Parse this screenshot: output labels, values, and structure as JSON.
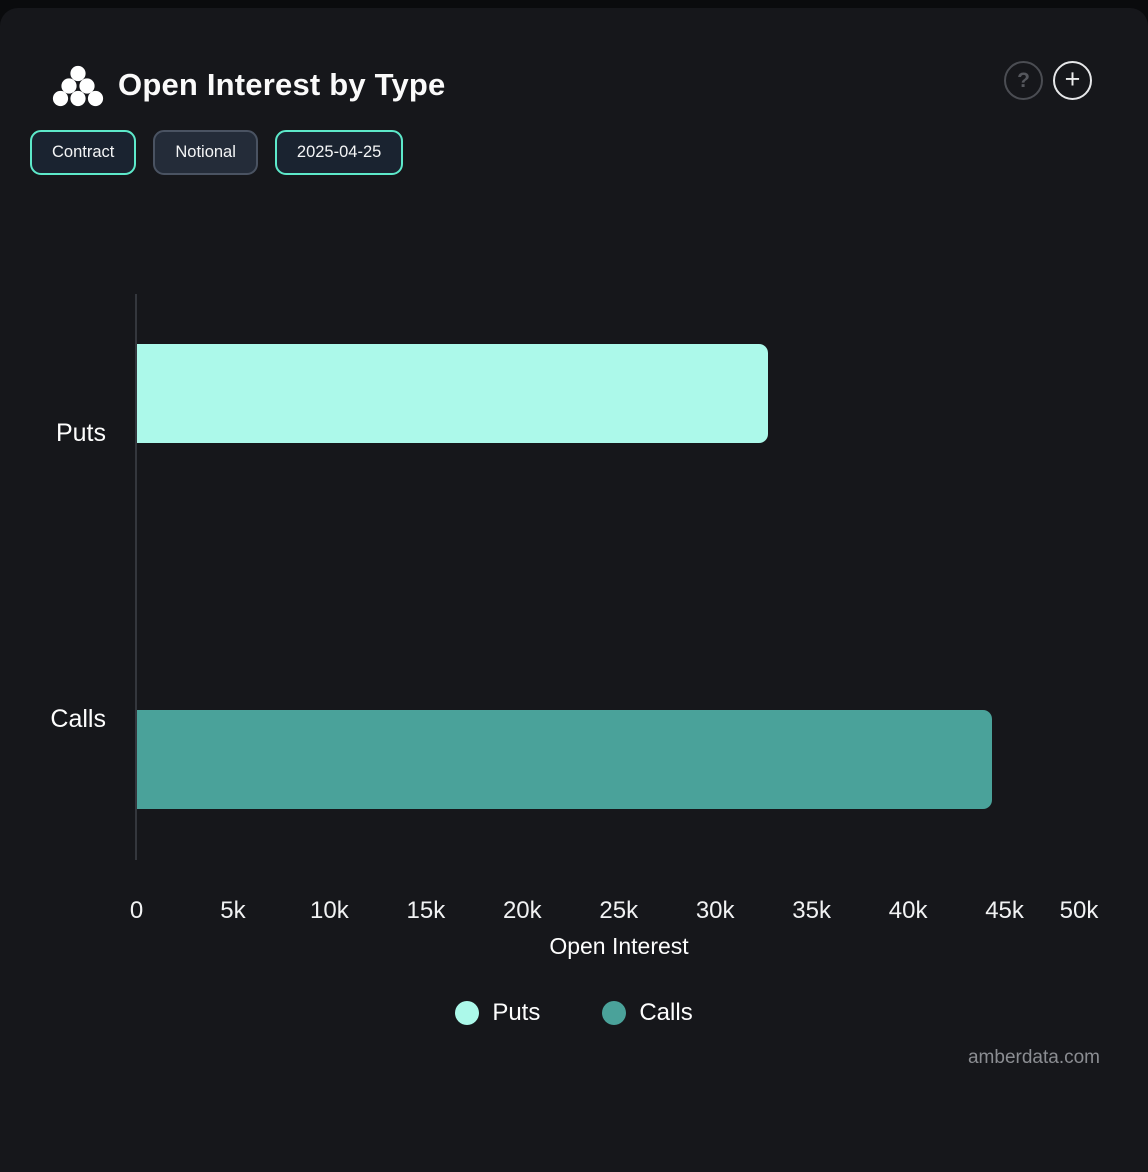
{
  "header": {
    "title": "Open Interest by Type",
    "icons": {
      "logo": "amberdata-logo",
      "help_glyph": "?",
      "add_glyph": "+"
    }
  },
  "toolbar": {
    "buttons": [
      {
        "label": "Contract",
        "active": true
      },
      {
        "label": "Notional",
        "active": false
      },
      {
        "label": "2025-04-25",
        "active": true
      }
    ]
  },
  "chart_data": {
    "type": "bar",
    "orientation": "horizontal",
    "title": "Open Interest by Type",
    "categories": [
      "Puts",
      "Calls"
    ],
    "series": [
      {
        "name": "Puts",
        "color": "#ACF9EA",
        "values": [
          32700,
          0
        ]
      },
      {
        "name": "Calls",
        "color": "#4AA29A",
        "values": [
          0,
          44300
        ]
      }
    ],
    "xlabel": "Open Interest",
    "ylabel": "",
    "xlim": [
      0,
      50000
    ],
    "x_ticks": [
      "0",
      "5k",
      "10k",
      "15k",
      "20k",
      "25k",
      "30k",
      "35k",
      "40k",
      "45k",
      "50k"
    ],
    "grid": false,
    "legend_position": "bottom"
  },
  "colors": {
    "panel_bg": "#16171b",
    "outer_bg": "#0a0b0d",
    "accent_border": "#5de9ca",
    "axis_line": "#34373d",
    "tick_text": "#f1f2f3"
  },
  "footer": {
    "watermark": "amberdata.com"
  }
}
